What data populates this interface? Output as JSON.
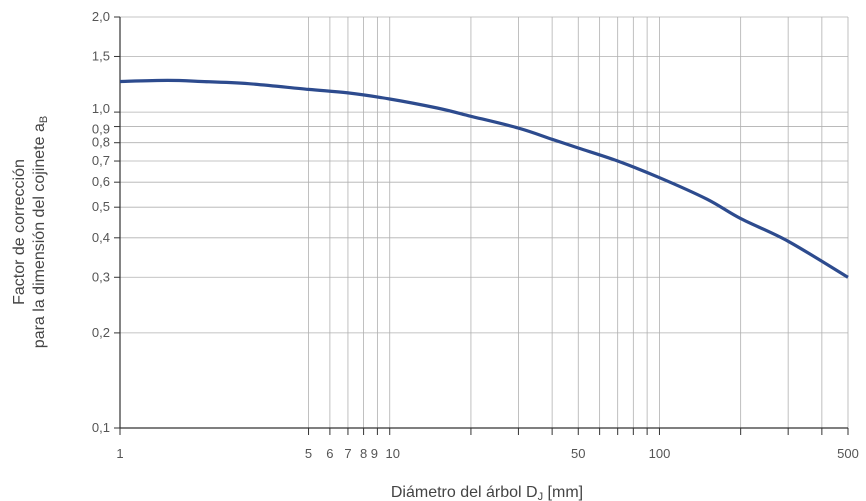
{
  "chart_data": {
    "type": "line",
    "xscale": "log",
    "yscale": "log",
    "xlim": [
      1,
      500
    ],
    "ylim": [
      0.1,
      2.0
    ],
    "grid": true,
    "xlabel": "Diámetro del árbol DJ [mm]",
    "xlabel_main": "Diámetro del árbol D",
    "xlabel_sub": "J",
    "xlabel_suffix": " [mm]",
    "ylabel_line1": "Factor de corrección",
    "ylabel_line2_main": "para la dimensión del cojinete a",
    "ylabel_line2_sub": "B",
    "x_ticks": [
      1,
      5,
      6,
      7,
      8,
      9,
      10,
      50,
      100,
      500
    ],
    "x_tick_labels": [
      "1",
      "5",
      "6",
      "7",
      "8",
      "9",
      "10",
      "50",
      "100",
      "500"
    ],
    "x_label_offsets": [
      0,
      0,
      0,
      0,
      0,
      -3,
      3,
      0,
      0,
      0
    ],
    "x_minor_ticks": [
      20,
      30,
      40,
      60,
      70,
      80,
      90,
      200,
      300,
      400
    ],
    "y_ticks": [
      0.1,
      0.2,
      0.3,
      0.4,
      0.5,
      0.6,
      0.7,
      0.8,
      0.9,
      1.0,
      1.5,
      2.0
    ],
    "y_tick_labels": [
      "0,1",
      "0,2",
      "0,3",
      "0,4",
      "0,5",
      "0,6",
      "0,7",
      "0,8",
      "0,9",
      "1,0",
      "1,5",
      "2,0"
    ],
    "y_label_offsets": [
      0,
      0,
      0,
      0,
      0,
      0,
      0,
      0,
      3,
      -3,
      0,
      0
    ],
    "colors": {
      "curve": "#2d4b8e",
      "grid": "#b0b0b0",
      "axis": "#333333"
    },
    "series": [
      {
        "x": [
          1,
          1.5,
          2,
          3,
          5,
          7,
          10,
          15,
          20,
          30,
          40,
          50,
          70,
          100,
          150,
          200,
          300,
          500
        ],
        "y": [
          1.25,
          1.26,
          1.25,
          1.23,
          1.18,
          1.15,
          1.1,
          1.03,
          0.97,
          0.89,
          0.82,
          0.77,
          0.7,
          0.62,
          0.53,
          0.46,
          0.39,
          0.3
        ]
      }
    ]
  }
}
